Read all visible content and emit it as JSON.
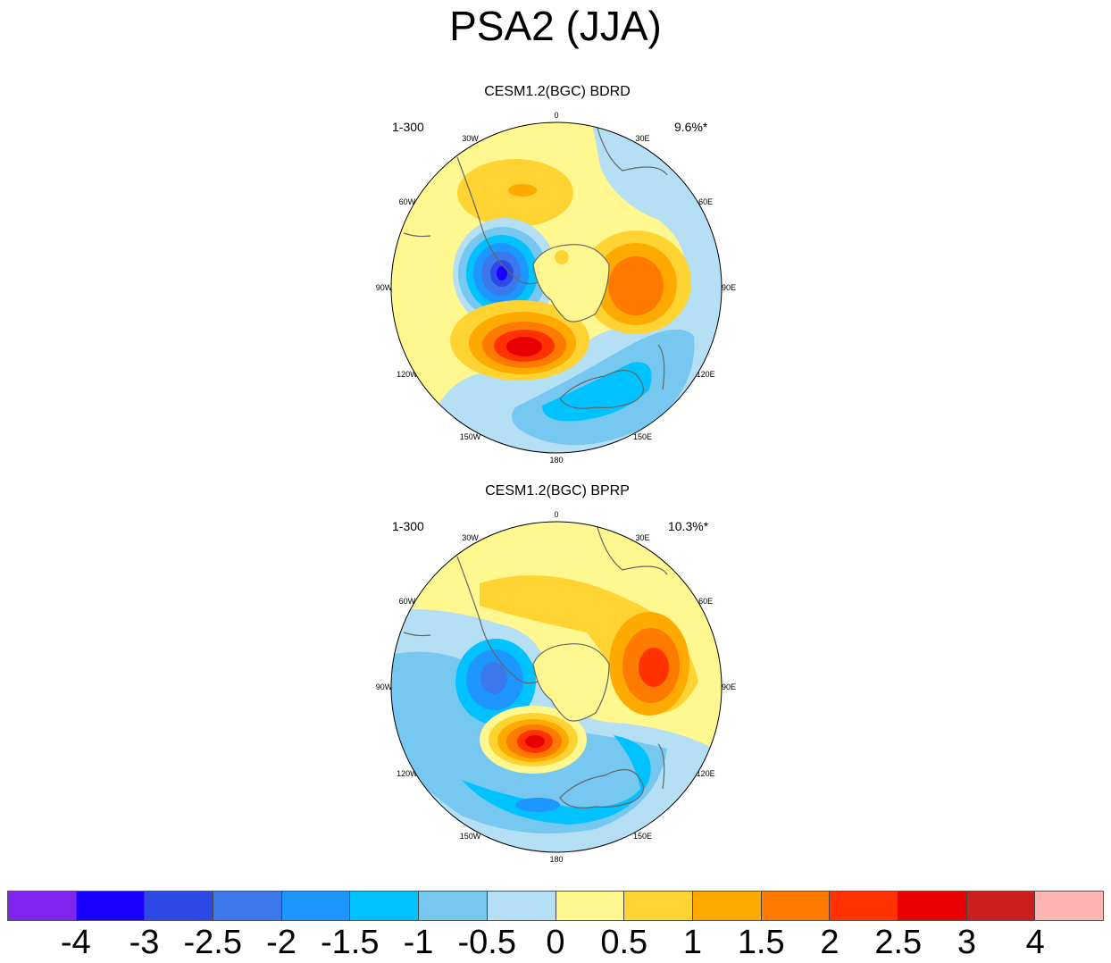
{
  "title": "PSA2 (JJA)",
  "panels": [
    {
      "title": "CESM1.2(BGC) BDRD",
      "left_label": "1-300",
      "right_label": "9.6%*"
    },
    {
      "title": "CESM1.2(BGC) BPRP",
      "left_label": "1-300",
      "right_label": "10.3%*"
    }
  ],
  "longitude_labels": [
    "0",
    "30E",
    "60E",
    "90E",
    "120E",
    "150E",
    "180",
    "150W",
    "120W",
    "90W",
    "60W",
    "30W"
  ],
  "colorbar": {
    "colors": [
      "#8224f0",
      "#1a00ff",
      "#2d49e6",
      "#3a78ec",
      "#1e96ff",
      "#00c2ff",
      "#76c8f0",
      "#b4dff4",
      "#fff78f",
      "#ffd432",
      "#ffaa00",
      "#ff7a00",
      "#ff3200",
      "#e80000",
      "#cd1e1e",
      "#ffb4b4"
    ],
    "labels": [
      "-4",
      "-3",
      "-2.5",
      "-2",
      "-1.5",
      "-1",
      "-0.5",
      "0",
      "0.5",
      "1",
      "1.5",
      "2",
      "2.5",
      "3",
      "4"
    ]
  }
}
